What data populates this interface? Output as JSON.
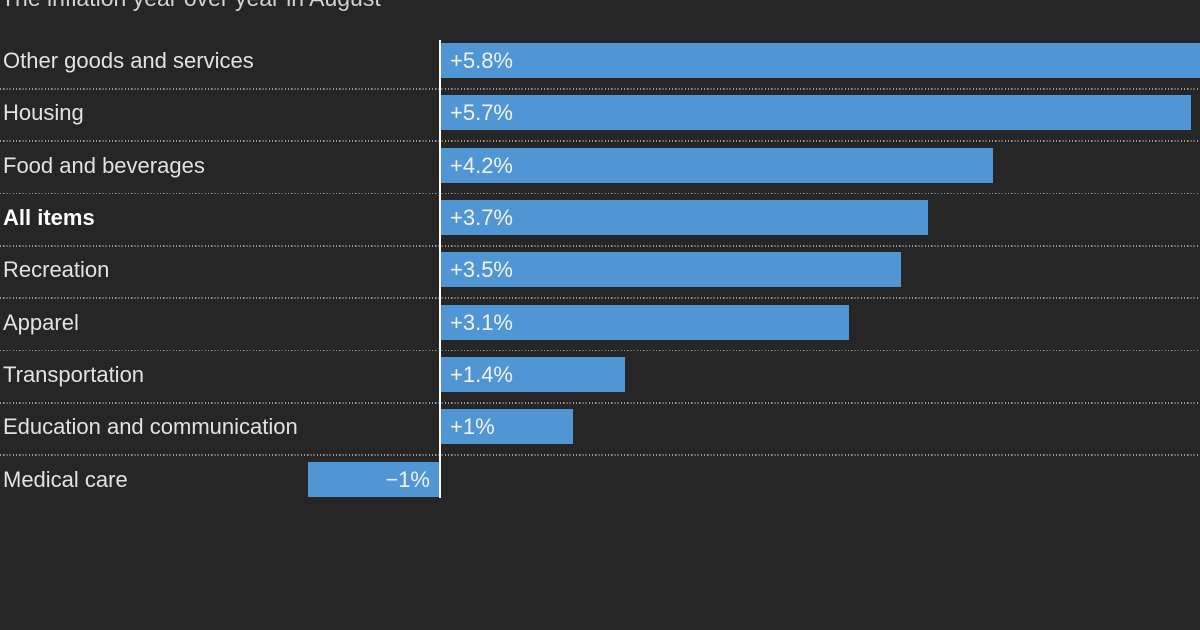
{
  "chart_data": {
    "type": "bar",
    "orientation": "horizontal",
    "title": "The inflation year over year in August",
    "categories": [
      "Other goods and services",
      "Housing",
      "Food and beverages",
      "All items",
      "Recreation",
      "Apparel",
      "Transportation",
      "Education and communication",
      "Medical care"
    ],
    "values": [
      5.8,
      5.7,
      4.2,
      3.7,
      3.5,
      3.1,
      1.4,
      1,
      -1
    ],
    "value_labels": [
      "+5.8%",
      "+5.7%",
      "+4.2%",
      "+3.7%",
      "+3.5%",
      "+3.1%",
      "+1.4%",
      "+1%",
      "−1%"
    ],
    "emphasized_category": "All items",
    "bar_color": "#5096d4",
    "background_color": "#262626",
    "baseline_color": "#ffffff",
    "label_color": "#e2e2e2",
    "value_label_color": "#f2f2f2",
    "xlim": [
      -1,
      5.8
    ],
    "grid": "dotted row separators",
    "legend": "none"
  }
}
